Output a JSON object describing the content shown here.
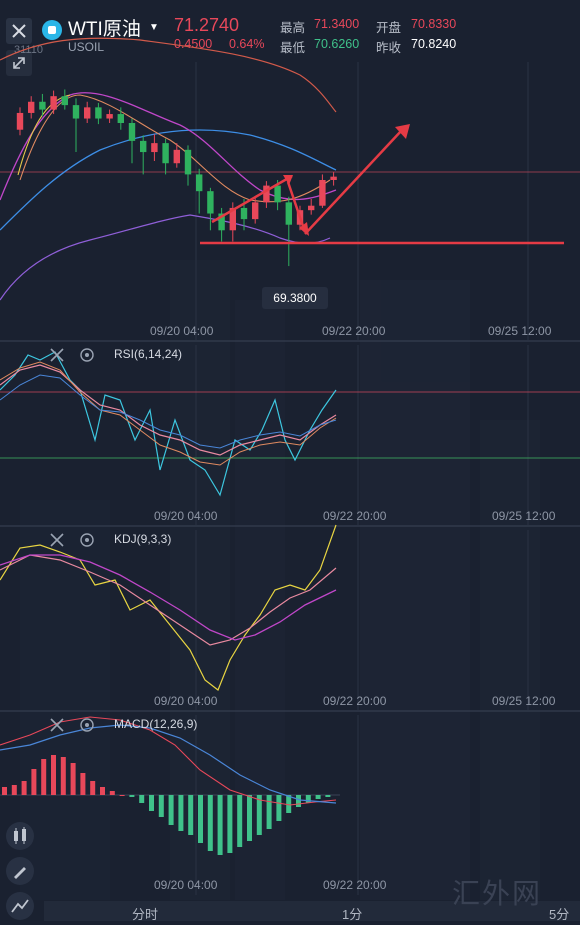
{
  "header": {
    "symbol": "WTI原油",
    "subsymbol": "USOIL",
    "price": "71.2740",
    "change": "0.4500",
    "change_pct": "0.64%",
    "high_label": "最高",
    "high_value": "71.3400",
    "open_label": "开盘",
    "open_value": "70.8330",
    "low_label": "最低",
    "low_value": "70.6260",
    "prev_close_label": "昨收",
    "prev_close_value": "70.8240",
    "partial_label": "31110"
  },
  "main_chart": {
    "low_marker": "69.3800",
    "x_ticks": [
      "09/20 04:00",
      "09/22 20:00",
      "09/25 12:00"
    ]
  },
  "rsi": {
    "label": "RSI(6,14,24)",
    "x_ticks": [
      "09/20 04:00",
      "09/22 20:00",
      "09/25 12:00"
    ]
  },
  "kdj": {
    "label": "KDJ(9,3,3)",
    "x_ticks": [
      "09/20 04:00",
      "09/22 20:00",
      "09/25 12:00"
    ]
  },
  "macd": {
    "label": "MACD(12,26,9)",
    "x_ticks": [
      "09/20 04:00",
      "09/22 20:00"
    ]
  },
  "bottom_bar": {
    "tab_time": "分时",
    "tab_1m": "1分",
    "tab_5m": "5分"
  },
  "watermark": "汇外网",
  "colors": {
    "bg": "#1a2130",
    "up": "#e8485a",
    "down": "#2fb25f",
    "accent": "#2ab6e8"
  },
  "chart_data": {
    "type": "candlestick",
    "candles": [
      {
        "o": 70.6,
        "c": 70.75,
        "h": 70.8,
        "l": 70.55
      },
      {
        "o": 70.75,
        "c": 70.85,
        "h": 70.9,
        "l": 70.7
      },
      {
        "o": 70.85,
        "c": 70.78,
        "h": 70.92,
        "l": 70.72
      },
      {
        "o": 70.78,
        "c": 70.9,
        "h": 70.95,
        "l": 70.74
      },
      {
        "o": 70.9,
        "c": 70.82,
        "h": 70.96,
        "l": 70.78
      },
      {
        "o": 70.82,
        "c": 70.7,
        "h": 70.88,
        "l": 70.4
      },
      {
        "o": 70.7,
        "c": 70.8,
        "h": 70.85,
        "l": 70.66
      },
      {
        "o": 70.8,
        "c": 70.7,
        "h": 70.84,
        "l": 70.65
      },
      {
        "o": 70.7,
        "c": 70.74,
        "h": 70.78,
        "l": 70.66
      },
      {
        "o": 70.74,
        "c": 70.66,
        "h": 70.8,
        "l": 70.6
      },
      {
        "o": 70.66,
        "c": 70.5,
        "h": 70.7,
        "l": 70.3
      },
      {
        "o": 70.5,
        "c": 70.4,
        "h": 70.55,
        "l": 70.2
      },
      {
        "o": 70.4,
        "c": 70.48,
        "h": 70.56,
        "l": 70.32
      },
      {
        "o": 70.48,
        "c": 70.3,
        "h": 70.52,
        "l": 70.2
      },
      {
        "o": 70.3,
        "c": 70.42,
        "h": 70.48,
        "l": 70.26
      },
      {
        "o": 70.42,
        "c": 70.2,
        "h": 70.46,
        "l": 70.1
      },
      {
        "o": 70.2,
        "c": 70.05,
        "h": 70.25,
        "l": 69.85
      },
      {
        "o": 70.05,
        "c": 69.85,
        "h": 70.08,
        "l": 69.7
      },
      {
        "o": 69.85,
        "c": 69.7,
        "h": 69.9,
        "l": 69.6
      },
      {
        "o": 69.7,
        "c": 69.9,
        "h": 69.95,
        "l": 69.6
      },
      {
        "o": 69.9,
        "c": 69.8,
        "h": 69.98,
        "l": 69.7
      },
      {
        "o": 69.8,
        "c": 69.95,
        "h": 70.0,
        "l": 69.76
      },
      {
        "o": 69.95,
        "c": 70.1,
        "h": 70.14,
        "l": 69.9
      },
      {
        "o": 70.1,
        "c": 69.95,
        "h": 70.15,
        "l": 69.88
      },
      {
        "o": 69.95,
        "c": 69.75,
        "h": 70.0,
        "l": 69.38
      },
      {
        "o": 69.75,
        "c": 69.88,
        "h": 69.92,
        "l": 69.7
      },
      {
        "o": 69.88,
        "c": 69.92,
        "h": 69.98,
        "l": 69.84
      },
      {
        "o": 69.92,
        "c": 70.15,
        "h": 70.2,
        "l": 69.9
      },
      {
        "o": 70.15,
        "c": 70.18,
        "h": 70.22,
        "l": 70.1
      }
    ]
  }
}
